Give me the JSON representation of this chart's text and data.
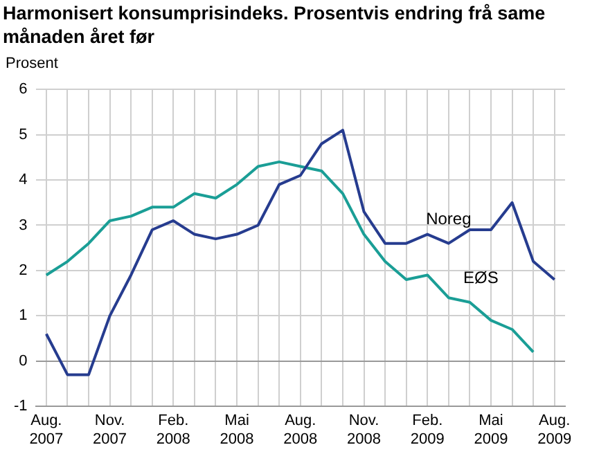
{
  "chart_data": {
    "type": "line",
    "title": "Harmonisert konsumprisindeks. Prosentvis endring frå same månaden året før",
    "ylabel": "Prosent",
    "categories": [
      "Aug.\n2007",
      null,
      null,
      "Nov.\n2007",
      null,
      null,
      "Feb.\n2008",
      null,
      null,
      "Mai\n2008",
      null,
      null,
      "Aug.\n2008",
      null,
      null,
      "Nov.\n2008",
      null,
      null,
      "Feb.\n2009",
      null,
      null,
      "Mai\n2009",
      null,
      null,
      "Aug.\n2009"
    ],
    "series": [
      {
        "name": "Noreg",
        "color": "#263c8f",
        "values": [
          0.6,
          -0.3,
          -0.3,
          1.0,
          1.9,
          2.9,
          3.1,
          2.8,
          2.7,
          2.8,
          3.0,
          3.9,
          4.1,
          4.8,
          5.1,
          3.3,
          2.6,
          2.6,
          2.8,
          2.6,
          2.9,
          2.9,
          3.5,
          2.2,
          1.8
        ]
      },
      {
        "name": "EØS",
        "color": "#1a9e96",
        "values": [
          1.9,
          2.2,
          2.6,
          3.1,
          3.2,
          3.4,
          3.4,
          3.7,
          3.6,
          3.9,
          4.3,
          4.4,
          4.3,
          4.2,
          3.7,
          2.8,
          2.2,
          1.8,
          1.9,
          1.4,
          1.3,
          0.9,
          0.7,
          0.2,
          null
        ]
      }
    ],
    "ylim": [
      -1,
      6
    ],
    "yticks": [
      -1,
      0,
      1,
      2,
      3,
      4,
      5,
      6
    ],
    "grid": true,
    "legend": false,
    "marker": "none",
    "line_style": "solid"
  }
}
